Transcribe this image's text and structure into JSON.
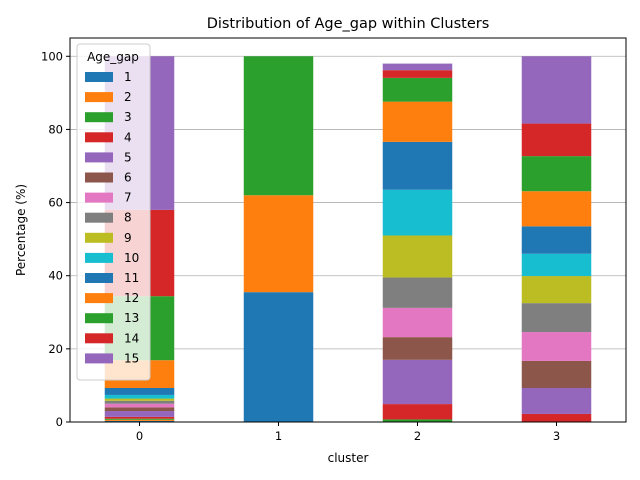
{
  "chart_data": {
    "type": "bar",
    "stacked": true,
    "title": "Distribution of Age_gap within Clusters",
    "xlabel": "cluster",
    "ylabel": "Percentage (%)",
    "categories": [
      "0",
      "1",
      "2",
      "3"
    ],
    "ylim": [
      0,
      105
    ],
    "yticks": [
      0,
      20,
      40,
      60,
      80,
      100
    ],
    "grid": "y",
    "legend": {
      "title": "Age_gap",
      "position": "upper-left"
    },
    "series": [
      {
        "name": "1",
        "color": "#1f77b4",
        "values": [
          0.3,
          35.5,
          0.0,
          0.0
        ]
      },
      {
        "name": "2",
        "color": "#ff7f0e",
        "values": [
          0.3,
          26.5,
          0.0,
          0.0
        ]
      },
      {
        "name": "3",
        "color": "#2ca02c",
        "values": [
          0.3,
          38.0,
          0.7,
          0.0
        ]
      },
      {
        "name": "4",
        "color": "#d62728",
        "values": [
          0.5,
          0.0,
          4.2,
          2.2
        ]
      },
      {
        "name": "5",
        "color": "#9467bd",
        "values": [
          1.6,
          0.0,
          12.1,
          7.1
        ]
      },
      {
        "name": "6",
        "color": "#8c564b",
        "values": [
          1.0,
          0.0,
          6.2,
          7.4
        ]
      },
      {
        "name": "7",
        "color": "#e377c2",
        "values": [
          1.0,
          0.0,
          8.0,
          7.9
        ]
      },
      {
        "name": "8",
        "color": "#7f7f7f",
        "values": [
          0.8,
          0.0,
          8.3,
          7.9
        ]
      },
      {
        "name": "9",
        "color": "#bcbd22",
        "values": [
          0.6,
          0.0,
          11.5,
          7.4
        ]
      },
      {
        "name": "10",
        "color": "#17becf",
        "values": [
          1.0,
          0.0,
          12.5,
          6.1
        ]
      },
      {
        "name": "11",
        "color": "#1f77b4",
        "values": [
          1.9,
          0.0,
          13.1,
          7.5
        ]
      },
      {
        "name": "12",
        "color": "#ff7f0e",
        "values": [
          7.6,
          0.0,
          11.0,
          9.6
        ]
      },
      {
        "name": "13",
        "color": "#2ca02c",
        "values": [
          17.5,
          0.0,
          6.5,
          9.6
        ]
      },
      {
        "name": "14",
        "color": "#d62728",
        "values": [
          23.6,
          0.0,
          2.1,
          8.9
        ]
      },
      {
        "name": "15",
        "color": "#9467bd",
        "values": [
          42.0,
          0.0,
          1.8,
          18.4
        ]
      }
    ]
  }
}
